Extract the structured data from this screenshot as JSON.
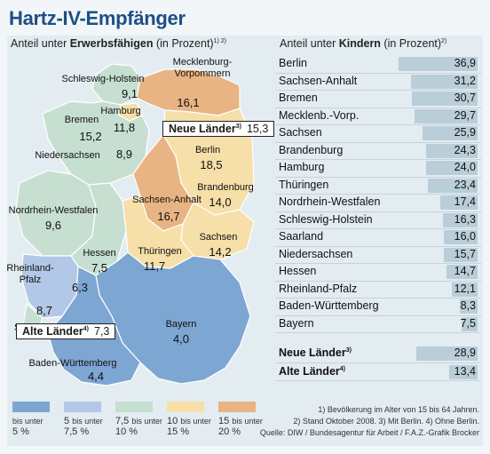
{
  "title": "Hartz-IV-Empfänger",
  "map": {
    "heading_prefix": "Anteil unter ",
    "heading_bold": "Erwerbsfähigen",
    "heading_suffix": " (in Prozent)",
    "heading_sup": "1) 2)",
    "neue_laender": {
      "label": "Neue Länder",
      "sup": "3)",
      "value": "15,3"
    },
    "alte_laender": {
      "label": "Alte Länder",
      "sup": "4)",
      "value": "7,3"
    },
    "states": [
      {
        "name": "Schleswig-Holstein",
        "value": "9,1",
        "bin": 2
      },
      {
        "name": "Mecklenburg-Vorpommern",
        "name_lines": [
          "Mecklenburg-",
          "Vorpommern"
        ],
        "value": "16,1",
        "bin": 4
      },
      {
        "name": "Hamburg",
        "value": "11,8",
        "bin": 3
      },
      {
        "name": "Bremen",
        "value": "15,2",
        "bin": 4
      },
      {
        "name": "Niedersachsen",
        "value": "8,9",
        "bin": 2
      },
      {
        "name": "Berlin",
        "value": "18,5",
        "bin": 4
      },
      {
        "name": "Brandenburg",
        "value": "14,0",
        "bin": 3
      },
      {
        "name": "Sachsen-Anhalt",
        "value": "16,7",
        "bin": 4
      },
      {
        "name": "Nordrhein-Westfalen",
        "value": "9,6",
        "bin": 2
      },
      {
        "name": "Sachsen",
        "value": "14,2",
        "bin": 3
      },
      {
        "name": "Hessen",
        "value": "7,5",
        "bin": 2
      },
      {
        "name": "Thüringen",
        "value": "11,7",
        "bin": 3
      },
      {
        "name": "Rheinland-Pfalz",
        "name_lines": [
          "Rheinland-",
          "Pfalz"
        ],
        "value": "6,3",
        "bin": 1
      },
      {
        "name": "Saarland",
        "value": "8,7",
        "bin": 2
      },
      {
        "name": "Bayern",
        "value": "4,0",
        "bin": 0
      },
      {
        "name": "Baden-Württemberg",
        "value": "4,4",
        "bin": 0
      }
    ]
  },
  "legend": [
    {
      "line1_small": "bis unter",
      "line2": "5 %",
      "color": "#7ea6d3"
    },
    {
      "line1_pre": "5",
      "line1_small": "bis unter",
      "line2": "7,5 %",
      "color": "#b3c8e6"
    },
    {
      "line1_pre": "7,5",
      "line1_small": "bis unter",
      "line2": "10 %",
      "color": "#c6dfd0"
    },
    {
      "line1_pre": "10",
      "line1_small": "bis unter",
      "line2": "15 %",
      "color": "#f6dfa8"
    },
    {
      "line1_pre": "15",
      "line1_small": "bis unter",
      "line2": "20 %",
      "color": "#e8b483"
    }
  ],
  "table": {
    "heading_prefix": "Anteil unter ",
    "heading_bold": "Kindern",
    "heading_suffix": " (in Prozent)",
    "heading_sup": "2)"
  },
  "chart_data": {
    "type": "bar",
    "orientation": "horizontal",
    "categories": [
      "Berlin",
      "Sachsen-Anhalt",
      "Bremen",
      "Mecklenb.-Vorp.",
      "Sachsen",
      "Brandenburg",
      "Hamburg",
      "Thüringen",
      "Nordrhein-Westfalen",
      "Schleswig-Holstein",
      "Saarland",
      "Niedersachsen",
      "Hessen",
      "Rheinland-Pfalz",
      "Baden-Württemberg",
      "Bayern"
    ],
    "values": [
      36.9,
      31.2,
      30.7,
      29.7,
      25.9,
      24.3,
      24.0,
      23.4,
      17.4,
      16.3,
      16.0,
      15.7,
      14.7,
      12.1,
      8.3,
      7.5
    ],
    "value_labels": [
      "36,9",
      "31,2",
      "30,7",
      "29,7",
      "25,9",
      "24,3",
      "24,0",
      "23,4",
      "17,4",
      "16,3",
      "16,0",
      "15,7",
      "14,7",
      "12,1",
      "8,3",
      "7,5"
    ],
    "summary": [
      {
        "name": "Neue Länder",
        "sup": "3)",
        "value": 28.9,
        "label": "28,9"
      },
      {
        "name": "Alte Länder",
        "sup": "4)",
        "value": 13.4,
        "label": "13,4"
      }
    ],
    "bar_color": "#b9ced9"
  },
  "footnotes": [
    "1) Bevölkerung im Alter von 15 bis 64 Jahren.",
    "2) Stand Oktober 2008. 3) Mit Berlin. 4) Ohne Berlin.",
    "Quelle: DIW / Bundesagentur für Arbeit / F.A.Z.-Grafik Brocker"
  ]
}
